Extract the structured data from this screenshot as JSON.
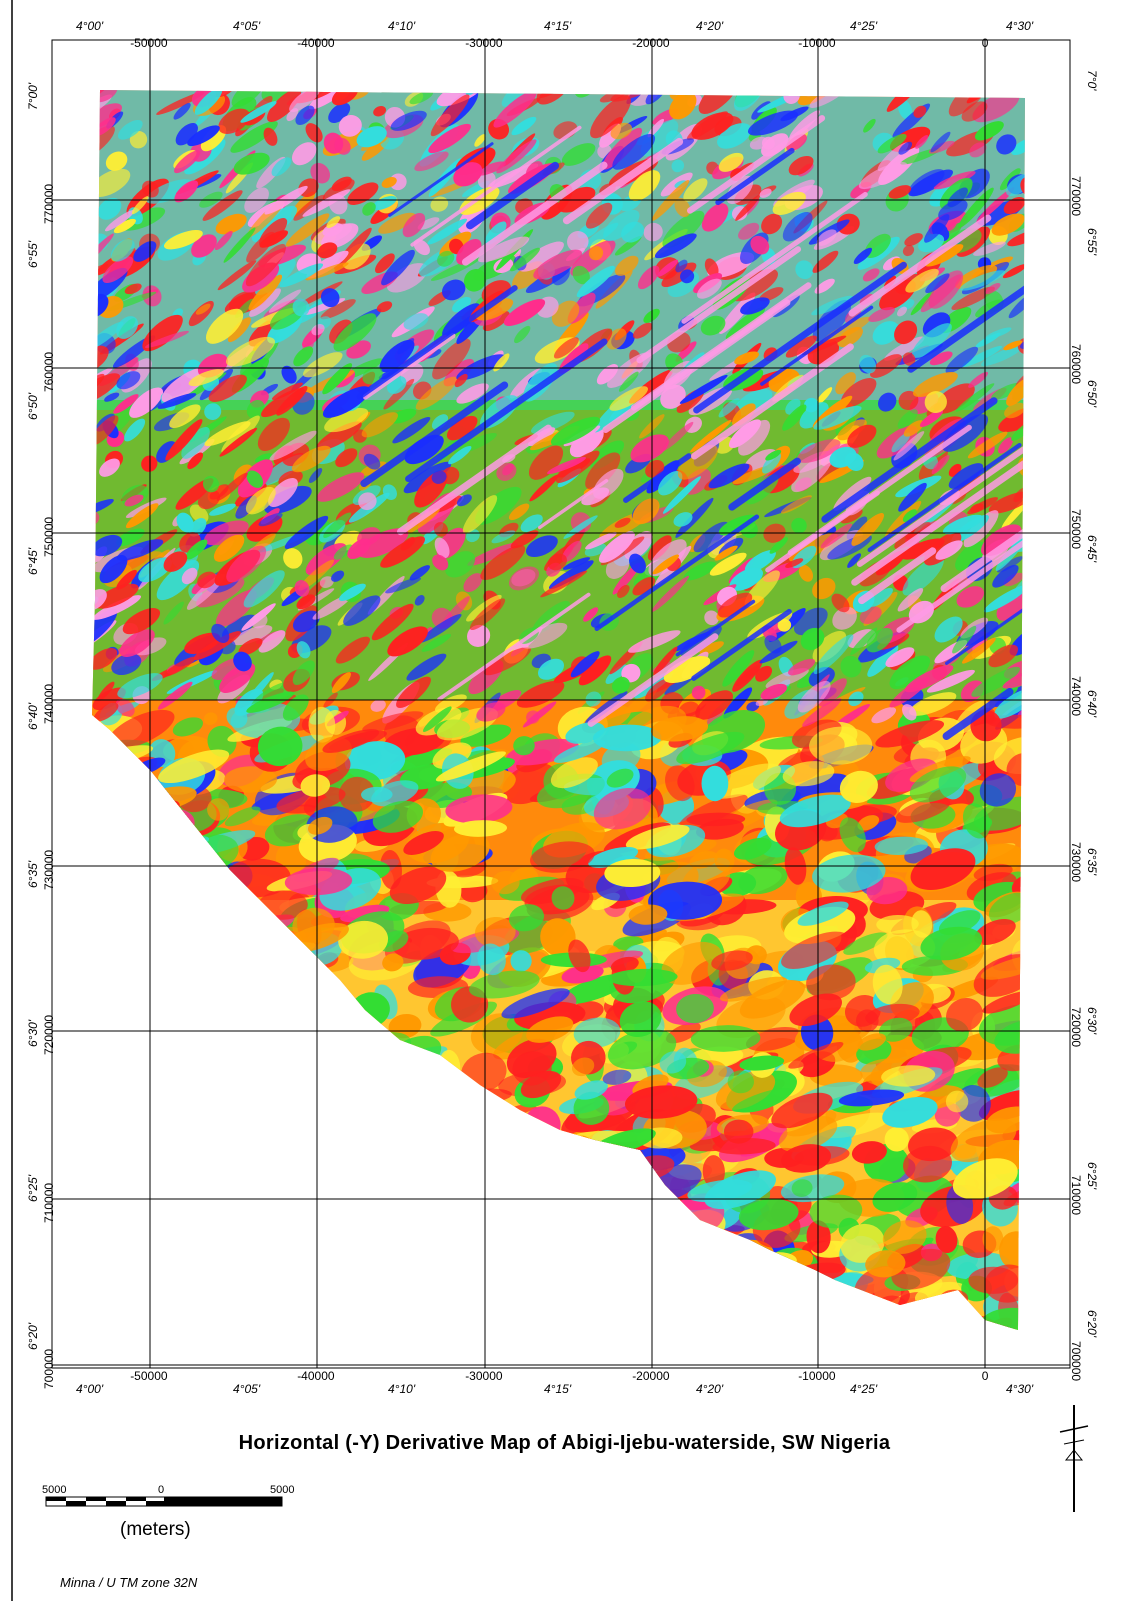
{
  "title": "Horizontal (-Y) Derivative Map of Abigi-Ijebu-waterside, SW Nigeria",
  "projection": "Minna / U TM zone 32N",
  "scale_bar": {
    "left_label": "5000",
    "center_label": "0",
    "right_label": "5000",
    "units": "(meters)"
  },
  "longitude_ticks": [
    "4°00'",
    "4°05'",
    "4°10'",
    "4°15'",
    "4°20'",
    "4°25'",
    "4°30'"
  ],
  "latitude_ticks_left": [
    "7°00'",
    "6°55'",
    "6°50'",
    "6°45'",
    "6°40'",
    "6°35'",
    "6°30'",
    "6°25'",
    "6°20'"
  ],
  "latitude_ticks_right": [
    "7°0'",
    "6°55'",
    "6°50'",
    "6°45'",
    "6°40'",
    "6°35'",
    "6°30'",
    "6°25'",
    "6°20'"
  ],
  "easting_ticks": [
    "-50000",
    "-40000",
    "-30000",
    "-20000",
    "-10000",
    "0"
  ],
  "northing_ticks": [
    "770000",
    "760000",
    "750000",
    "740000",
    "730000",
    "720000",
    "710000",
    "700000"
  ],
  "colors": {
    "pink": "#ff9be6",
    "magenta": "#ff2d8c",
    "red": "#ff2020",
    "orange": "#ff9900",
    "yellow": "#ffee33",
    "green": "#33dd33",
    "cyan": "#33dddd",
    "blue": "#1a2eff"
  }
}
